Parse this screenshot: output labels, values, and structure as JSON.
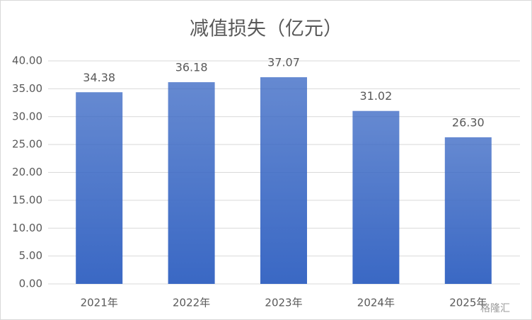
{
  "chart_data": {
    "type": "bar",
    "title": "减值损失（亿元）",
    "categories": [
      "2021年",
      "2022年",
      "2023年",
      "2024年",
      "2025年"
    ],
    "values": [
      34.38,
      36.18,
      37.07,
      31.02,
      26.3
    ],
    "value_labels": [
      "34.38",
      "36.18",
      "37.07",
      "31.02",
      "26.30"
    ],
    "color": "#3a68c4",
    "ylim": [
      0,
      40
    ],
    "yticks": [
      {
        "value": 0,
        "label": "0.00"
      },
      {
        "value": 5,
        "label": "5.00"
      },
      {
        "value": 10,
        "label": "10.00"
      },
      {
        "value": 15,
        "label": "15.00"
      },
      {
        "value": 20,
        "label": "20.00"
      },
      {
        "value": 25,
        "label": "25.00"
      },
      {
        "value": 30,
        "label": "30.00"
      },
      {
        "value": 35,
        "label": "35.00"
      },
      {
        "value": 40,
        "label": "40.00"
      }
    ],
    "grid": true,
    "watermark": "格隆汇"
  }
}
